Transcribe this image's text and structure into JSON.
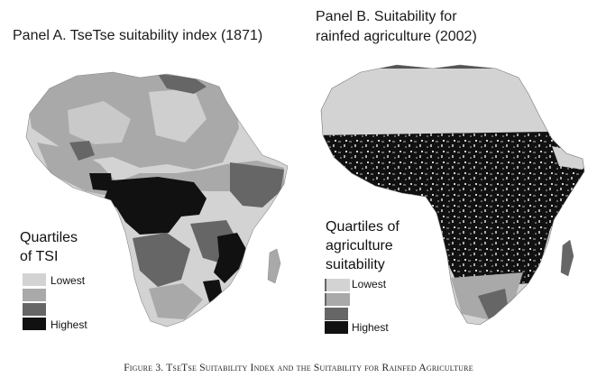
{
  "panel_a": {
    "title": "Panel A. TseTse suitability index (1871)",
    "legend": {
      "title_line1": "Quartiles",
      "title_line2": "of TSI",
      "items": [
        {
          "label": "Lowest",
          "color": "#d3d3d3"
        },
        {
          "label": "",
          "color": "#a9a9a9"
        },
        {
          "label": "",
          "color": "#666666"
        },
        {
          "label": "Highest",
          "color": "#111111"
        }
      ]
    }
  },
  "panel_b": {
    "title_line1": "Panel B. Suitability for",
    "title_line2": "rainfed agriculture (2002)",
    "legend": {
      "title_line1": "Quartiles of",
      "title_line2": "agriculture",
      "title_line3": "suitability",
      "items": [
        {
          "label": "Lowest",
          "color": "#d3d3d3"
        },
        {
          "label": "",
          "color": "#a9a9a9"
        },
        {
          "label": "",
          "color": "#666666"
        },
        {
          "label": "Highest",
          "color": "#111111"
        }
      ]
    }
  },
  "caption": "Figure 3. TseTse Suitability Index and the Suitability for Rainfed Agriculture",
  "colors": {
    "lowest": "#d3d3d3",
    "second": "#a9a9a9",
    "third": "#666666",
    "highest": "#111111"
  }
}
